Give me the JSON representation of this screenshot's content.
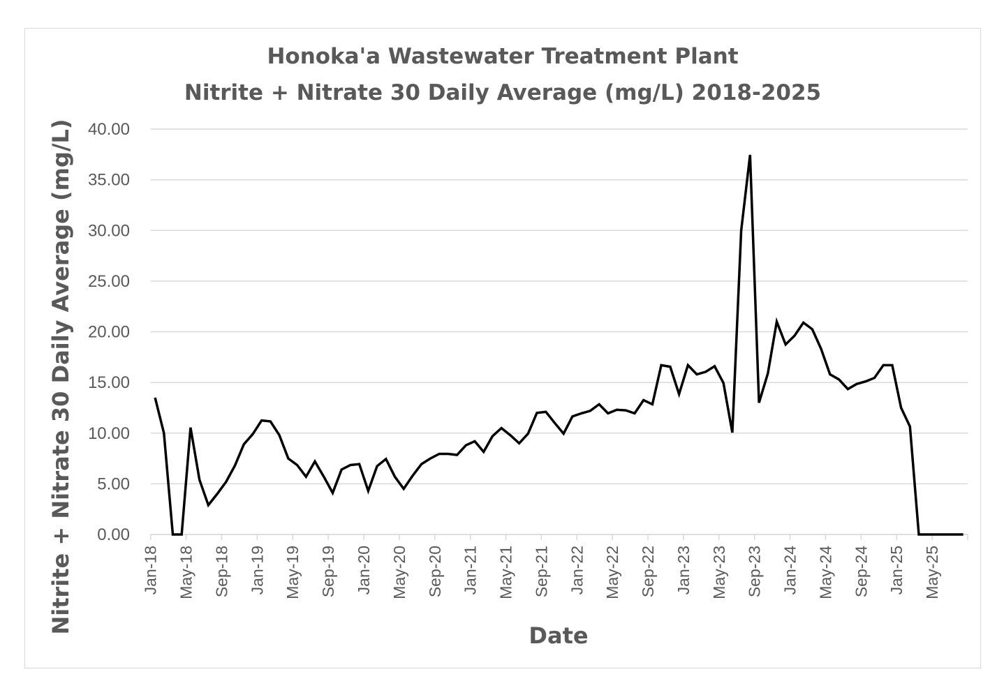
{
  "chart_data": {
    "type": "line",
    "title": [
      "Honoka'a Wastewater Treatment Plant",
      "Nitrite + Nitrate 30 Daily Average (mg/L) 2018-2025"
    ],
    "xlabel": "Date",
    "ylabel": "Nitrite + Nitrate 30 Daily Average (mg/L)",
    "ylim": [
      0,
      40
    ],
    "yticks": [
      "0.00",
      "5.00",
      "10.00",
      "15.00",
      "20.00",
      "25.00",
      "30.00",
      "35.00",
      "40.00"
    ],
    "xtick_labels": [
      "Jan-18",
      "May-18",
      "Sep-18",
      "Jan-19",
      "May-19",
      "Sep-19",
      "Jan-20",
      "May-20",
      "Sep-20",
      "Jan-21",
      "May-21",
      "Sep-21",
      "Jan-22",
      "May-22",
      "Sep-22",
      "Jan-23",
      "May-23",
      "Sep-23",
      "Jan-24",
      "May-24",
      "Sep-24",
      "Jan-25",
      "May-25"
    ],
    "grid": "horizontal",
    "legend": "none",
    "line_color": "#000000",
    "x": [
      "Jan-18",
      "Feb-18",
      "Mar-18",
      "Apr-18",
      "May-18",
      "Jun-18",
      "Jul-18",
      "Aug-18",
      "Sep-18",
      "Oct-18",
      "Nov-18",
      "Dec-18",
      "Jan-19",
      "Feb-19",
      "Mar-19",
      "Apr-19",
      "May-19",
      "Jun-19",
      "Jul-19",
      "Aug-19",
      "Sep-19",
      "Oct-19",
      "Nov-19",
      "Dec-19",
      "Jan-20",
      "Feb-20",
      "Mar-20",
      "Apr-20",
      "May-20",
      "Jun-20",
      "Jul-20",
      "Aug-20",
      "Sep-20",
      "Oct-20",
      "Nov-20",
      "Dec-20",
      "Jan-21",
      "Feb-21",
      "Mar-21",
      "Apr-21",
      "May-21",
      "Jun-21",
      "Jul-21",
      "Aug-21",
      "Sep-21",
      "Oct-21",
      "Nov-21",
      "Dec-21",
      "Jan-22",
      "Feb-22",
      "Mar-22",
      "Apr-22",
      "May-22",
      "Jun-22",
      "Jul-22",
      "Aug-22",
      "Sep-22",
      "Oct-22",
      "Nov-22",
      "Dec-22",
      "Jan-23",
      "Feb-23",
      "Mar-23",
      "Apr-23",
      "May-23",
      "Jun-23",
      "Jul-23",
      "Aug-23",
      "Sep-23",
      "Oct-23",
      "Nov-23",
      "Dec-23",
      "Jan-24",
      "Feb-24",
      "Mar-24",
      "Apr-24",
      "May-24",
      "Jun-24",
      "Jul-24",
      "Aug-24",
      "Sep-24",
      "Oct-24",
      "Nov-24",
      "Dec-24",
      "Jan-25",
      "Feb-25",
      "Mar-25",
      "Apr-25",
      "May-25",
      "Jun-25",
      "Jul-25",
      "Aug-25"
    ],
    "series": [
      {
        "name": "Nitrite + Nitrate 30 Daily Average (mg/L)",
        "values": [
          13.5,
          10.0,
          0,
          0,
          10.55,
          5.4,
          2.9,
          4.0,
          5.2,
          6.8,
          8.9,
          9.9,
          11.25,
          11.15,
          9.8,
          7.5,
          6.85,
          5.7,
          7.2,
          5.7,
          4.1,
          6.4,
          6.85,
          6.95,
          4.3,
          6.75,
          7.45,
          5.7,
          4.5,
          5.8,
          6.95,
          7.5,
          7.95,
          7.95,
          7.85,
          8.8,
          9.2,
          8.15,
          9.7,
          10.5,
          9.8,
          9.0,
          9.95,
          12.0,
          12.1,
          11.0,
          9.95,
          11.65,
          11.95,
          12.2,
          12.85,
          11.95,
          12.3,
          12.25,
          11.95,
          13.25,
          12.85,
          16.7,
          16.55,
          13.85,
          16.7,
          15.8,
          16.05,
          16.6,
          14.95,
          10.05,
          30.0,
          37.45,
          13.0,
          15.9,
          21.0,
          18.75,
          19.6,
          20.9,
          20.25,
          18.3,
          15.8,
          15.3,
          14.35,
          14.85,
          15.1,
          15.45,
          16.7,
          16.7,
          12.5,
          10.65,
          0,
          0,
          0,
          0,
          0,
          0
        ]
      }
    ]
  }
}
